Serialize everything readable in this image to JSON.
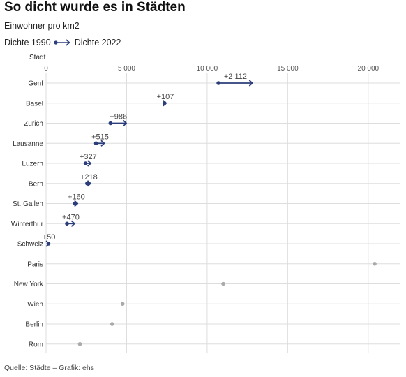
{
  "header": {
    "title": "So dicht wurde es in Städten",
    "subtitle": "Einwohner pro km2"
  },
  "legend": {
    "from_label": "Dichte 1990",
    "to_label": "Dichte 2022"
  },
  "footer": {
    "source": "Quelle: Städte – Grafik: ehs"
  },
  "colors": {
    "arrow": "#2b3d7a",
    "dot_other": "#aaaaaa",
    "grid": "#dddddd"
  },
  "chart_data": {
    "type": "dumbbell-arrow",
    "ylabel": "Stadt",
    "xlim": [
      0,
      22000
    ],
    "xticks": [
      0,
      5000,
      10000,
      15000,
      20000
    ],
    "xtick_labels": [
      "0",
      "5 000",
      "10 000",
      "15 000",
      "20 000"
    ],
    "grid": true,
    "rows": [
      {
        "city": "Genf",
        "from": 10700,
        "to": 12812,
        "change_label": "+2 112"
      },
      {
        "city": "Basel",
        "from": 7350,
        "to": 7457,
        "change_label": "+107"
      },
      {
        "city": "Zürich",
        "from": 4000,
        "to": 4986,
        "change_label": "+986"
      },
      {
        "city": "Lausanne",
        "from": 3100,
        "to": 3615,
        "change_label": "+515"
      },
      {
        "city": "Luzern",
        "from": 2450,
        "to": 2777,
        "change_label": "+327"
      },
      {
        "city": "Bern",
        "from": 2550,
        "to": 2768,
        "change_label": "+218"
      },
      {
        "city": "St. Gallen",
        "from": 1800,
        "to": 1960,
        "change_label": "+160"
      },
      {
        "city": "Winterthur",
        "from": 1300,
        "to": 1770,
        "change_label": "+470"
      },
      {
        "city": "Schweiz",
        "from": 150,
        "to": 200,
        "change_label": "+50"
      },
      {
        "city": "Paris",
        "value": 20400
      },
      {
        "city": "New York",
        "value": 11000
      },
      {
        "city": "Wien",
        "value": 4750
      },
      {
        "city": "Berlin",
        "value": 4100
      },
      {
        "city": "Rom",
        "value": 2100
      }
    ]
  }
}
